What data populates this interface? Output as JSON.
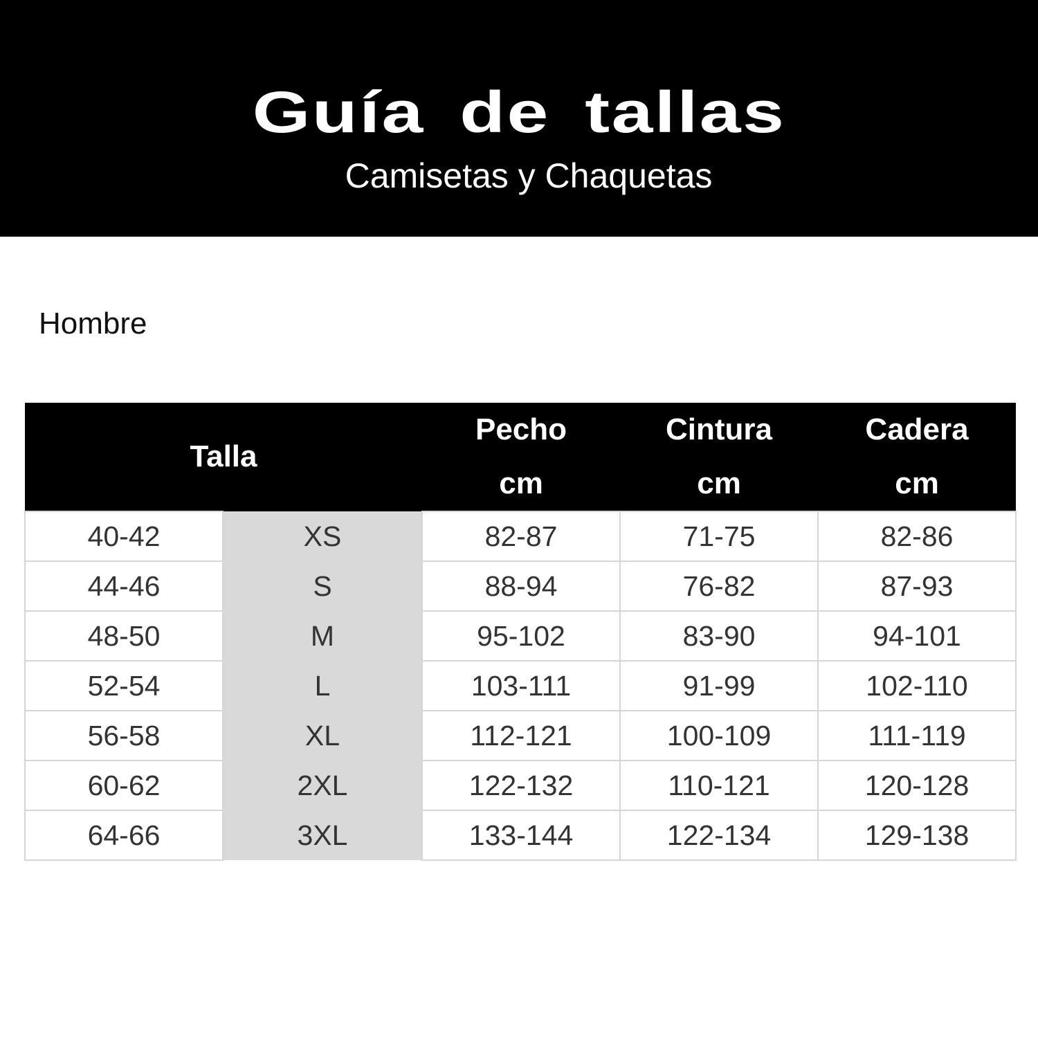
{
  "header": {
    "title": "Guía de tallas",
    "subtitle": "Camisetas y Chaquetas"
  },
  "section": "Hombre",
  "colors": {
    "banner": "#000000",
    "size_column": "#d9d9d9"
  },
  "table": {
    "headers": {
      "talla": "Talla",
      "columns": [
        {
          "name": "Pecho",
          "unit": "cm"
        },
        {
          "name": "Cintura",
          "unit": "cm"
        },
        {
          "name": "Cadera",
          "unit": "cm"
        }
      ]
    },
    "rows": [
      [
        "40-42",
        "XS",
        "82-87",
        "71-75",
        "82-86"
      ],
      [
        "44-46",
        "S",
        "88-94",
        "76-82",
        "87-93"
      ],
      [
        "48-50",
        "M",
        "95-102",
        "83-90",
        "94-101"
      ],
      [
        "52-54",
        "L",
        "103-111",
        "91-99",
        "102-110"
      ],
      [
        "56-58",
        "XL",
        "112-121",
        "100-109",
        "111-119"
      ],
      [
        "60-62",
        "2XL",
        "122-132",
        "110-121",
        "120-128"
      ],
      [
        "64-66",
        "3XL",
        "133-144",
        "122-134",
        "129-138"
      ]
    ]
  }
}
